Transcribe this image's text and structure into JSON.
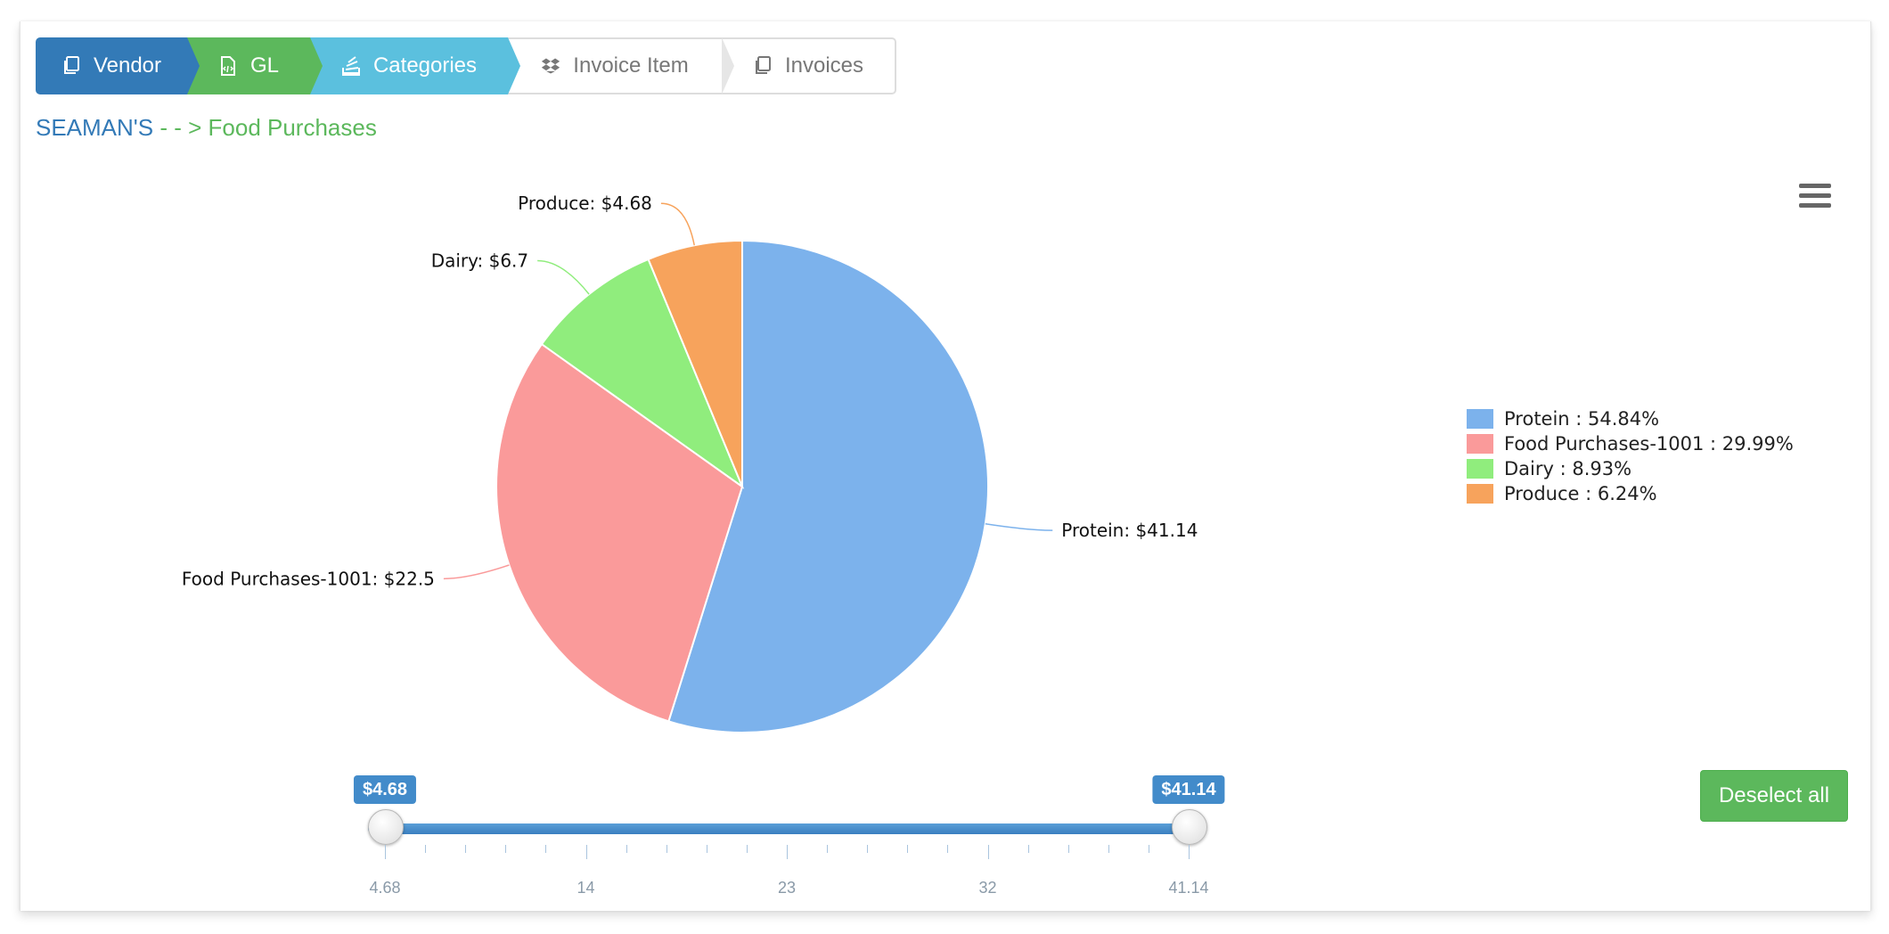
{
  "wizard": {
    "steps": [
      {
        "label": "Vendor"
      },
      {
        "label": "GL"
      },
      {
        "label": "Categories"
      },
      {
        "label": "Invoice Item"
      },
      {
        "label": "Invoices"
      }
    ]
  },
  "trail": {
    "root": "SEAMAN'S",
    "separator": " - - > ",
    "current": "Food Purchases"
  },
  "colors": {
    "vendor": "#337ab7",
    "gl": "#5cb85c",
    "categories": "#5bc0de",
    "slider": "#428bca"
  },
  "chart_data": {
    "type": "pie",
    "categories": [
      "Protein",
      "Food Purchases-1001",
      "Dairy",
      "Produce"
    ],
    "values": [
      41.14,
      22.5,
      6.7,
      4.68
    ],
    "value_prefix": "$",
    "percentages": [
      54.84,
      29.99,
      8.93,
      6.24
    ],
    "colors": [
      "#7cb2ec",
      "#fa9a9a",
      "#90ed7d",
      "#f7a35c"
    ],
    "data_labels": [
      "Protein: $41.14",
      "Food Purchases-1001: $22.5",
      "Dairy: $6.7",
      "Produce: $4.68"
    ],
    "legend": {
      "placement": "right",
      "entries": [
        "Protein : 54.84%",
        "Food Purchases-1001 : 29.99%",
        "Dairy : 8.93%",
        "Produce : 6.24%"
      ]
    }
  },
  "range_slider": {
    "min": 4.68,
    "max": 41.14,
    "from": 4.68,
    "to": 41.14,
    "from_label": "$4.68",
    "to_label": "$41.14",
    "grid_labels": [
      "4.68",
      "14",
      "23",
      "32",
      "41.14"
    ],
    "grid_values": [
      4.68,
      14,
      23,
      32,
      41.14
    ]
  },
  "buttons": {
    "deselect_all": "Deselect all"
  },
  "icons": {
    "vendor": "copy-icon",
    "gl": "code-file-icon",
    "categories": "stack-icon",
    "invoice_item": "dropbox-icon",
    "invoices": "copy-icon",
    "menu": "hamburger-menu-icon"
  }
}
